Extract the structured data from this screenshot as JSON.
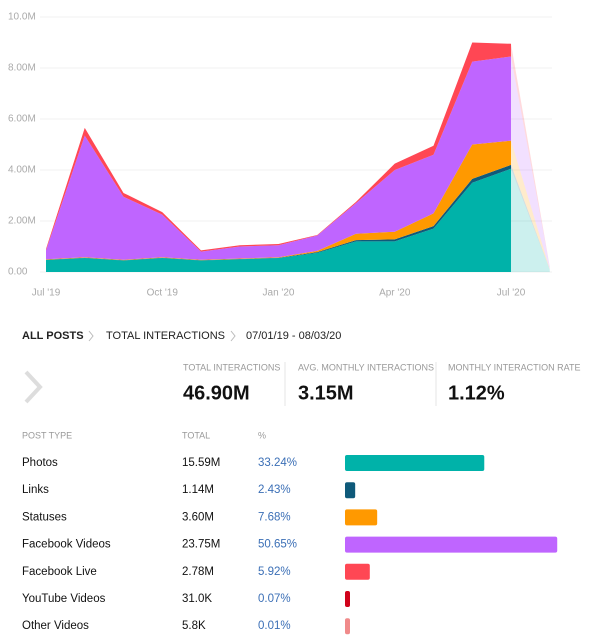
{
  "chart_data": {
    "type": "stacked_area",
    "categories": [
      "Jul '19",
      null,
      null,
      "Oct '19",
      null,
      null,
      "Jan '20",
      null,
      null,
      "Apr '20",
      null,
      null,
      "Jul '20",
      null
    ],
    "series": [
      {
        "name": "Photos",
        "color": "#00b2a9",
        "values": [
          0.47,
          0.55,
          0.45,
          0.55,
          0.45,
          0.5,
          0.55,
          0.75,
          1.2,
          1.2,
          1.7,
          3.5,
          4.05,
          0.1
        ]
      },
      {
        "name": "Links",
        "color": "#0f5a7a",
        "values": [
          0.01,
          0.01,
          0.01,
          0.01,
          0.01,
          0.01,
          0.01,
          0.03,
          0.05,
          0.08,
          0.1,
          0.15,
          0.15,
          0
        ]
      },
      {
        "name": "Statuses",
        "color": "#ff9900",
        "values": [
          0.02,
          0.02,
          0.02,
          0.02,
          0.02,
          0.02,
          0.02,
          0.05,
          0.25,
          0.3,
          0.5,
          1.35,
          0.95,
          0.02
        ]
      },
      {
        "name": "Facebook Videos",
        "color": "#bf65ff",
        "values": [
          0.35,
          4.77,
          2.47,
          1.67,
          0.32,
          0.47,
          0.47,
          0.6,
          1.2,
          2.42,
          2.3,
          3.25,
          3.3,
          0.08
        ]
      },
      {
        "name": "Facebook Live",
        "color": "#ff4754",
        "values": [
          0.05,
          0.3,
          0.15,
          0.1,
          0.05,
          0.05,
          0.05,
          0.02,
          0.05,
          0.25,
          0.35,
          0.75,
          0.5,
          0.01
        ]
      }
    ],
    "ylim": [
      0,
      10
    ],
    "yticks": [
      {
        "value": 0,
        "label": "0.00"
      },
      {
        "value": 2,
        "label": "2.00M"
      },
      {
        "value": 4,
        "label": "4.00M"
      },
      {
        "value": 6,
        "label": "6.00M"
      },
      {
        "value": 8,
        "label": "8.00M"
      },
      {
        "value": 10,
        "label": "10.0M"
      }
    ],
    "grid": true
  },
  "breadcrumb": [
    "ALL POSTS",
    "TOTAL INTERACTIONS",
    "07/01/19 - 08/03/20"
  ],
  "stats": [
    {
      "label": "TOTAL INTERACTIONS",
      "value": "46.90M"
    },
    {
      "label": "AVG. MONTHLY INTERACTIONS",
      "value": "3.15M"
    },
    {
      "label": "MONTHLY INTERACTION RATE",
      "value": "1.12%"
    }
  ],
  "table": {
    "headers": [
      "POST TYPE",
      "TOTAL",
      "%"
    ],
    "rows": [
      {
        "name": "Photos",
        "total": "15.59M",
        "percent": 33.24,
        "percent_label": "33.24%",
        "color": "#00b2a9"
      },
      {
        "name": "Links",
        "total": "1.14M",
        "percent": 2.43,
        "percent_label": "2.43%",
        "color": "#0f5a7a"
      },
      {
        "name": "Statuses",
        "total": "3.60M",
        "percent": 7.68,
        "percent_label": "7.68%",
        "color": "#ff9900"
      },
      {
        "name": "Facebook Videos",
        "total": "23.75M",
        "percent": 50.65,
        "percent_label": "50.65%",
        "color": "#bf65ff"
      },
      {
        "name": "Facebook Live",
        "total": "2.78M",
        "percent": 5.92,
        "percent_label": "5.92%",
        "color": "#ff4754"
      },
      {
        "name": "YouTube Videos",
        "total": "31.0K",
        "percent": 0.07,
        "percent_label": "0.07%",
        "color": "#d0021b"
      },
      {
        "name": "Other Videos",
        "total": "5.8K",
        "percent": 0.01,
        "percent_label": "0.01%",
        "color": "#f08a8a"
      }
    ]
  }
}
